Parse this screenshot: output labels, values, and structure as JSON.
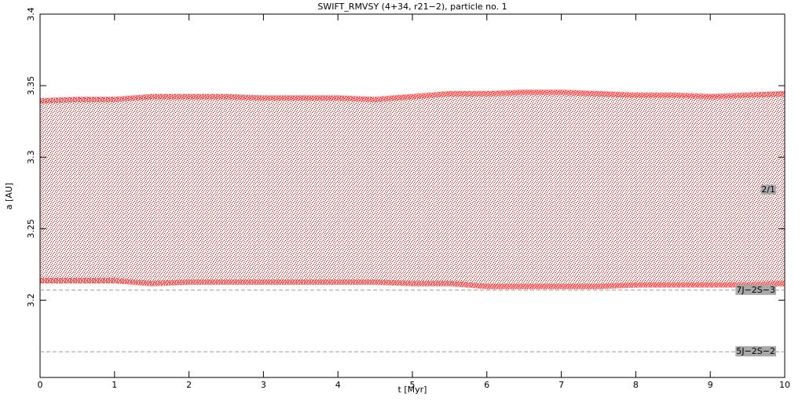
{
  "chart_data": {
    "type": "band",
    "title": "SWIFT_RMVSY (4+34, r21−2), particle no. 1",
    "x_label": "t [Myr]",
    "y_label": "a [AU]",
    "x": [
      0,
      0.5,
      1,
      1.5,
      2,
      2.5,
      3,
      3.5,
      4,
      4.5,
      5,
      5.5,
      6,
      6.5,
      7,
      7.5,
      8,
      8.5,
      9,
      9.5,
      10
    ],
    "series": [
      {
        "name": "upper",
        "color": "#ff0000",
        "values": [
          3.341,
          3.342,
          3.342,
          3.344,
          3.344,
          3.344,
          3.343,
          3.343,
          3.343,
          3.342,
          3.344,
          3.346,
          3.346,
          3.347,
          3.347,
          3.346,
          3.345,
          3.345,
          3.344,
          3.345,
          3.346
        ]
      },
      {
        "name": "lower",
        "color": "#ff0000",
        "values": [
          3.212,
          3.212,
          3.212,
          3.21,
          3.211,
          3.211,
          3.211,
          3.211,
          3.211,
          3.211,
          3.21,
          3.21,
          3.208,
          3.208,
          3.208,
          3.208,
          3.209,
          3.209,
          3.209,
          3.209,
          3.21
        ]
      }
    ],
    "resonances": [
      {
        "label": "2/1",
        "value": 3.277,
        "line": false
      },
      {
        "label": "7J−2S−3",
        "value": 3.207,
        "line": true
      },
      {
        "label": "5J−2S−2",
        "value": 3.164,
        "line": true
      }
    ],
    "xlim": [
      0,
      10
    ],
    "xticks": [
      0,
      1,
      2,
      3,
      4,
      5,
      6,
      7,
      8,
      9,
      10
    ],
    "ylim": [
      3.146,
      3.4
    ],
    "yticks": [
      3.2,
      3.25,
      3.3,
      3.35,
      3.4
    ]
  }
}
